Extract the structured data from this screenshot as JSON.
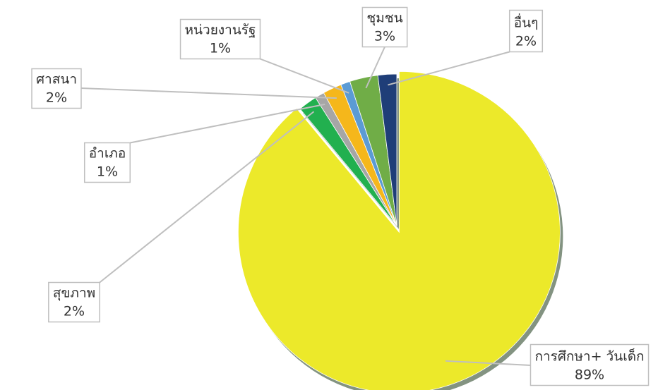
{
  "chart_data": {
    "type": "pie",
    "categories": [
      "การศึกษา+ วันเด็ก",
      "สุขภาพ",
      "อำเภอ",
      "ศาสนา",
      "หน่วยงานรัฐ",
      "ชุมชน",
      "อื่นๆ"
    ],
    "values": [
      89,
      2,
      1,
      2,
      1,
      3,
      2
    ],
    "value_labels": [
      "89%",
      "2%",
      "1%",
      "2%",
      "1%",
      "3%",
      "2%"
    ],
    "colors": [
      "#ece92a",
      "#22b04f",
      "#a6a6a6",
      "#f5b71b",
      "#5b9bd5",
      "#70ad47",
      "#1f3e78"
    ]
  }
}
